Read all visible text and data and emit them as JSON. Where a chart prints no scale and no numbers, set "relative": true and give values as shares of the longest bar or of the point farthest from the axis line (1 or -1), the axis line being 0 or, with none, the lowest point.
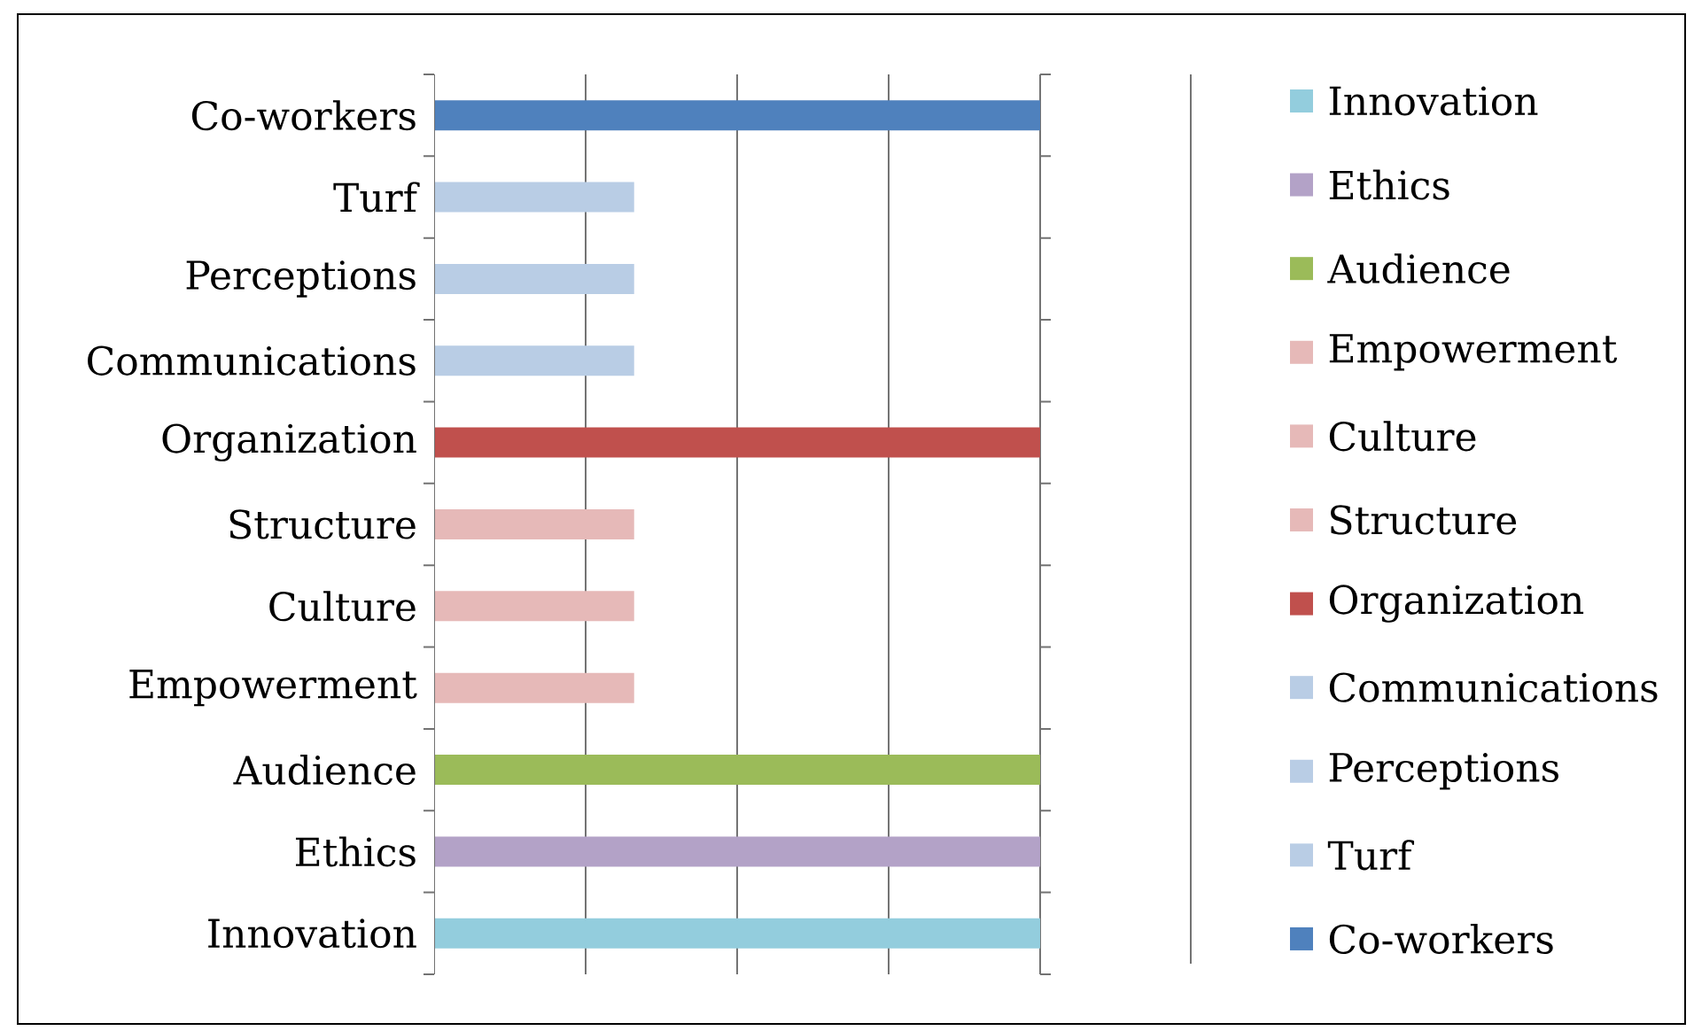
{
  "chart_data": {
    "type": "bar",
    "orientation": "horizontal",
    "relative": true,
    "categories": [
      "Co-workers",
      "Turf",
      "Perceptions",
      "Communications",
      "Organization",
      "Structure",
      "Culture",
      "Empowerment",
      "Audience",
      "Ethics",
      "Innovation"
    ],
    "series": [
      {
        "name": "Co-workers",
        "color": "#4f81bd",
        "values": [
          1,
          null,
          null,
          null,
          null,
          null,
          null,
          null,
          null,
          null,
          null
        ]
      },
      {
        "name": "Turf",
        "color": "#b9cde5",
        "values": [
          null,
          0.33,
          null,
          null,
          null,
          null,
          null,
          null,
          null,
          null,
          null
        ]
      },
      {
        "name": "Perceptions",
        "color": "#b9cde5",
        "values": [
          null,
          null,
          0.33,
          null,
          null,
          null,
          null,
          null,
          null,
          null,
          null
        ]
      },
      {
        "name": "Communications",
        "color": "#b9cde5",
        "values": [
          null,
          null,
          null,
          0.33,
          null,
          null,
          null,
          null,
          null,
          null,
          null
        ]
      },
      {
        "name": "Organization",
        "color": "#c0504d",
        "values": [
          null,
          null,
          null,
          null,
          1,
          null,
          null,
          null,
          null,
          null,
          null
        ]
      },
      {
        "name": "Structure",
        "color": "#e6b9b8",
        "values": [
          null,
          null,
          null,
          null,
          null,
          0.33,
          null,
          null,
          null,
          null,
          null
        ]
      },
      {
        "name": "Culture",
        "color": "#e6b9b8",
        "values": [
          null,
          null,
          null,
          null,
          null,
          null,
          0.33,
          null,
          null,
          null,
          null
        ]
      },
      {
        "name": "Empowerment",
        "color": "#e6b9b8",
        "values": [
          null,
          null,
          null,
          null,
          null,
          null,
          null,
          0.33,
          null,
          null,
          null
        ]
      },
      {
        "name": "Audience",
        "color": "#9bbb59",
        "values": [
          null,
          null,
          null,
          null,
          null,
          null,
          null,
          null,
          1,
          null,
          null
        ]
      },
      {
        "name": "Ethics",
        "color": "#b3a2c7",
        "values": [
          null,
          null,
          null,
          null,
          null,
          null,
          null,
          null,
          null,
          1,
          null
        ]
      },
      {
        "name": "Innovation",
        "color": "#93cddd",
        "values": [
          null,
          null,
          null,
          null,
          null,
          null,
          null,
          null,
          null,
          null,
          1
        ]
      }
    ],
    "grid": "x",
    "legend": "right"
  }
}
